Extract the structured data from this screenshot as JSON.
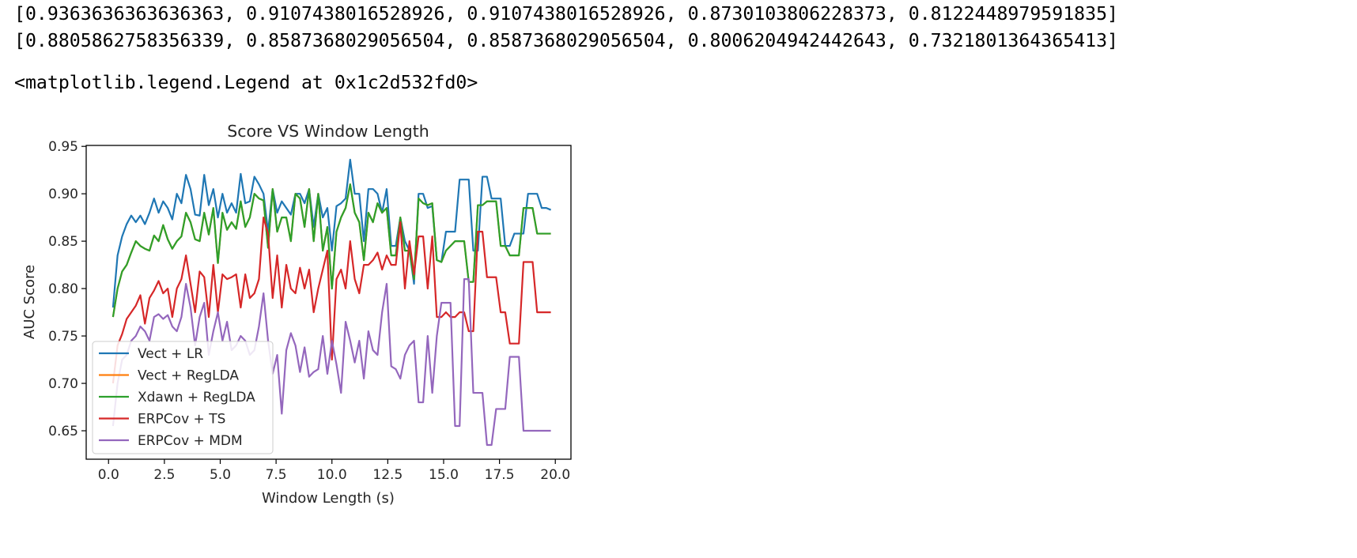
{
  "output": {
    "line1": "[0.9363636363636363, 0.9107438016528926, 0.9107438016528926, 0.8730103806228373, 0.8122448979591835]",
    "line2": "[0.8805862758356339, 0.8587368029056504, 0.8587368029056504, 0.8006204942442643, 0.7321801364365413]",
    "line3": "<matplotlib.legend.Legend at 0x1c2d532fd0>"
  },
  "chart_data": {
    "type": "line",
    "title": "Score VS Window Length",
    "xlabel": "Window Length (s)",
    "ylabel": "AUC Score",
    "xlim": [
      -1.0,
      20.7
    ],
    "ylim": [
      0.62,
      0.951
    ],
    "xticks": [
      0.0,
      2.5,
      5.0,
      7.5,
      10.0,
      12.5,
      15.0,
      17.5,
      20.0
    ],
    "xtick_labels": [
      "0.0",
      "2.5",
      "5.0",
      "7.5",
      "10.0",
      "12.5",
      "15.0",
      "17.5",
      "20.0"
    ],
    "yticks": [
      0.65,
      0.7,
      0.75,
      0.8,
      0.85,
      0.9,
      0.95
    ],
    "ytick_labels": [
      "0.65",
      "0.70",
      "0.75",
      "0.80",
      "0.85",
      "0.90",
      "0.95"
    ],
    "grid": false,
    "legend_position": "lower-left",
    "x_start": 0.2,
    "x_end": 19.8,
    "series": [
      {
        "name": "Vect + LR",
        "color": "#1f77b4",
        "values": [
          0.78,
          0.835,
          0.855,
          0.868,
          0.877,
          0.87,
          0.877,
          0.868,
          0.88,
          0.895,
          0.88,
          0.892,
          0.885,
          0.873,
          0.9,
          0.89,
          0.92,
          0.905,
          0.878,
          0.877,
          0.92,
          0.888,
          0.905,
          0.875,
          0.9,
          0.88,
          0.89,
          0.88,
          0.921,
          0.89,
          0.892,
          0.918,
          0.91,
          0.9,
          0.86,
          0.905,
          0.88,
          0.892,
          0.885,
          0.878,
          0.9,
          0.9,
          0.89,
          0.905,
          0.865,
          0.9,
          0.875,
          0.885,
          0.84,
          0.887,
          0.89,
          0.895,
          0.936,
          0.9,
          0.9,
          0.85,
          0.905,
          0.905,
          0.9,
          0.88,
          0.905,
          0.845,
          0.845,
          0.875,
          0.85,
          0.84,
          0.805,
          0.9,
          0.9,
          0.885,
          0.887,
          0.83,
          0.828,
          0.86,
          0.86,
          0.86,
          0.915,
          0.915,
          0.915,
          0.84,
          0.84,
          0.918,
          0.918,
          0.895,
          0.895,
          0.895,
          0.845,
          0.845,
          0.858,
          0.858,
          0.858,
          0.9,
          0.9,
          0.9,
          0.885,
          0.885,
          0.883
        ]
      },
      {
        "name": "Vect + RegLDA",
        "color": "#ff7f0e",
        "values": [
          0.77,
          0.8,
          0.818,
          0.825,
          0.838,
          0.85,
          0.845,
          0.842,
          0.84,
          0.856,
          0.85,
          0.867,
          0.852,
          0.842,
          0.85,
          0.855,
          0.88,
          0.87,
          0.852,
          0.85,
          0.88,
          0.857,
          0.885,
          0.827,
          0.88,
          0.862,
          0.87,
          0.863,
          0.892,
          0.865,
          0.875,
          0.9,
          0.895,
          0.893,
          0.843,
          0.905,
          0.86,
          0.875,
          0.875,
          0.85,
          0.9,
          0.895,
          0.865,
          0.905,
          0.85,
          0.9,
          0.84,
          0.865,
          0.8,
          0.86,
          0.875,
          0.885,
          0.91,
          0.88,
          0.87,
          0.83,
          0.88,
          0.87,
          0.89,
          0.88,
          0.885,
          0.835,
          0.835,
          0.875,
          0.84,
          0.84,
          0.81,
          0.895,
          0.89,
          0.888,
          0.89,
          0.83,
          0.828,
          0.84,
          0.845,
          0.85,
          0.85,
          0.85,
          0.807,
          0.807,
          0.888,
          0.888,
          0.892,
          0.892,
          0.892,
          0.845,
          0.845,
          0.835,
          0.835,
          0.835,
          0.885,
          0.885,
          0.885,
          0.858,
          0.858,
          0.858,
          0.858
        ]
      },
      {
        "name": "Xdawn + RegLDA",
        "color": "#2ca02c",
        "values": [
          0.77,
          0.8,
          0.818,
          0.825,
          0.838,
          0.85,
          0.845,
          0.842,
          0.84,
          0.856,
          0.85,
          0.867,
          0.852,
          0.842,
          0.85,
          0.855,
          0.88,
          0.87,
          0.852,
          0.85,
          0.88,
          0.857,
          0.885,
          0.827,
          0.88,
          0.862,
          0.87,
          0.863,
          0.892,
          0.865,
          0.875,
          0.9,
          0.895,
          0.893,
          0.843,
          0.905,
          0.86,
          0.875,
          0.875,
          0.85,
          0.9,
          0.895,
          0.865,
          0.905,
          0.85,
          0.9,
          0.84,
          0.865,
          0.8,
          0.86,
          0.875,
          0.885,
          0.91,
          0.88,
          0.87,
          0.83,
          0.88,
          0.87,
          0.89,
          0.88,
          0.885,
          0.835,
          0.835,
          0.875,
          0.84,
          0.84,
          0.81,
          0.895,
          0.89,
          0.888,
          0.89,
          0.83,
          0.828,
          0.84,
          0.845,
          0.85,
          0.85,
          0.85,
          0.807,
          0.807,
          0.888,
          0.888,
          0.892,
          0.892,
          0.892,
          0.845,
          0.845,
          0.835,
          0.835,
          0.835,
          0.885,
          0.885,
          0.885,
          0.858,
          0.858,
          0.858,
          0.858
        ]
      },
      {
        "name": "ERPCov + TS",
        "color": "#d62728",
        "values": [
          0.7,
          0.74,
          0.752,
          0.768,
          0.775,
          0.782,
          0.793,
          0.763,
          0.79,
          0.798,
          0.808,
          0.795,
          0.8,
          0.77,
          0.8,
          0.81,
          0.835,
          0.805,
          0.775,
          0.818,
          0.812,
          0.77,
          0.825,
          0.775,
          0.815,
          0.81,
          0.812,
          0.815,
          0.78,
          0.815,
          0.79,
          0.795,
          0.81,
          0.875,
          0.858,
          0.79,
          0.835,
          0.78,
          0.825,
          0.8,
          0.795,
          0.822,
          0.8,
          0.82,
          0.775,
          0.8,
          0.82,
          0.84,
          0.725,
          0.81,
          0.82,
          0.8,
          0.85,
          0.81,
          0.795,
          0.825,
          0.825,
          0.83,
          0.838,
          0.82,
          0.835,
          0.825,
          0.825,
          0.87,
          0.8,
          0.85,
          0.815,
          0.855,
          0.855,
          0.8,
          0.855,
          0.77,
          0.77,
          0.775,
          0.77,
          0.77,
          0.775,
          0.775,
          0.755,
          0.755,
          0.86,
          0.86,
          0.812,
          0.812,
          0.812,
          0.775,
          0.775,
          0.742,
          0.742,
          0.742,
          0.828,
          0.828,
          0.828,
          0.775,
          0.775,
          0.775,
          0.775
        ]
      },
      {
        "name": "ERPCov + MDM",
        "color": "#9467bd",
        "values": [
          0.655,
          0.7,
          0.725,
          0.73,
          0.745,
          0.75,
          0.76,
          0.755,
          0.745,
          0.77,
          0.773,
          0.768,
          0.772,
          0.76,
          0.755,
          0.77,
          0.805,
          0.78,
          0.74,
          0.77,
          0.785,
          0.73,
          0.755,
          0.775,
          0.745,
          0.765,
          0.735,
          0.74,
          0.75,
          0.745,
          0.73,
          0.735,
          0.76,
          0.795,
          0.745,
          0.71,
          0.73,
          0.668,
          0.735,
          0.753,
          0.74,
          0.712,
          0.738,
          0.707,
          0.712,
          0.715,
          0.75,
          0.71,
          0.745,
          0.72,
          0.69,
          0.765,
          0.745,
          0.722,
          0.745,
          0.705,
          0.755,
          0.735,
          0.73,
          0.775,
          0.805,
          0.718,
          0.715,
          0.705,
          0.73,
          0.74,
          0.745,
          0.68,
          0.68,
          0.75,
          0.69,
          0.75,
          0.785,
          0.785,
          0.785,
          0.655,
          0.655,
          0.81,
          0.81,
          0.69,
          0.69,
          0.69,
          0.635,
          0.635,
          0.673,
          0.673,
          0.673,
          0.728,
          0.728,
          0.728,
          0.65,
          0.65,
          0.65,
          0.65,
          0.65,
          0.65,
          0.65
        ]
      }
    ]
  }
}
